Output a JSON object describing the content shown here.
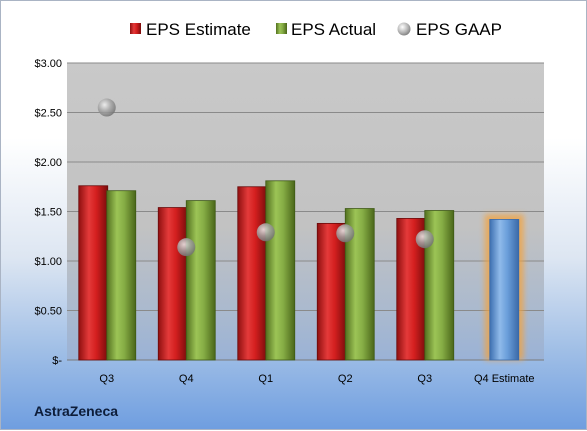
{
  "company": "AstraZeneca",
  "chart_data": {
    "type": "bar",
    "categories": [
      "Q3",
      "Q4",
      "Q1",
      "Q2",
      "Q3",
      "Q4 Estimate"
    ],
    "series": [
      {
        "name": "EPS Estimate",
        "color": "#d92020",
        "values": [
          1.76,
          1.54,
          1.75,
          1.38,
          1.43,
          1.42
        ]
      },
      {
        "name": "EPS Actual",
        "color": "#7fa83a",
        "values": [
          1.71,
          1.61,
          1.81,
          1.53,
          1.51,
          null
        ]
      },
      {
        "name": "EPS GAAP",
        "color": "#a0a0a0",
        "values": [
          2.55,
          1.14,
          1.29,
          1.28,
          1.22,
          null
        ]
      }
    ],
    "highlight_color": "#6a9fd8",
    "y_ticks": [
      "$-",
      "$0.50",
      "$1.00",
      "$1.50",
      "$2.00",
      "$2.50",
      "$3.00"
    ],
    "ylim": [
      0,
      3.0
    ],
    "legend_position": "top",
    "grid": true
  }
}
